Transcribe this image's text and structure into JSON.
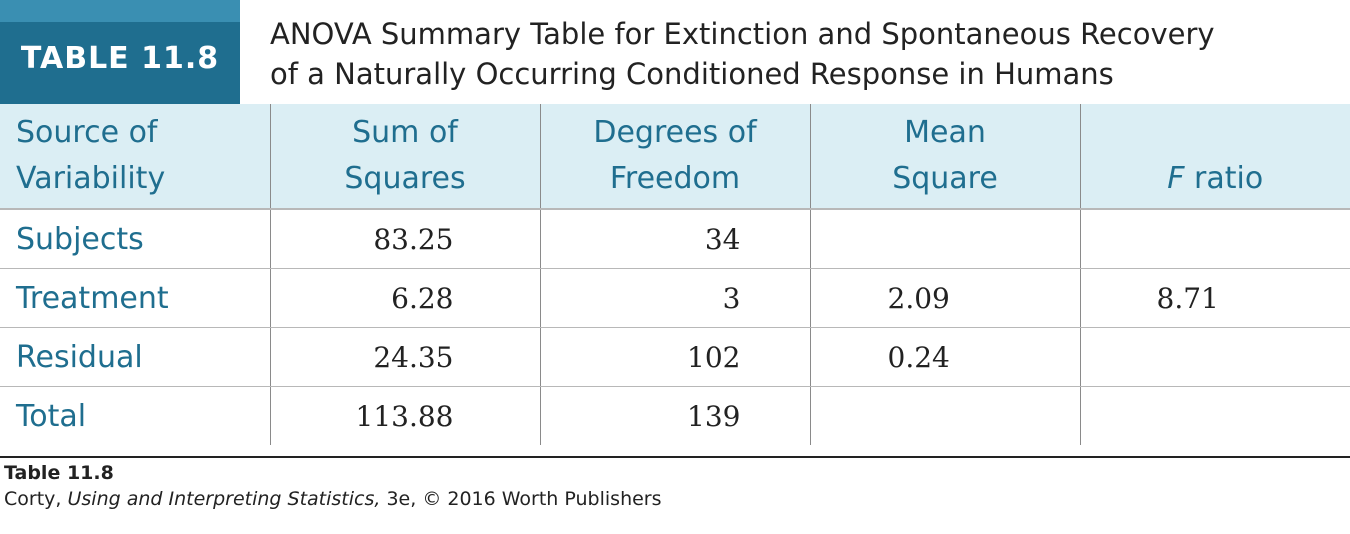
{
  "badge": "TABLE 11.8",
  "caption": {
    "line1": "ANOVA Summary Table for Extinction and Spontaneous Recovery",
    "line2": "of a Naturally Occurring Conditioned Response in Humans"
  },
  "headers": {
    "source": {
      "line1": "Source of",
      "line2": "Variability"
    },
    "ss": {
      "line1": "Sum of",
      "line2": "Squares"
    },
    "df": {
      "line1": "Degrees of",
      "line2": "Freedom"
    },
    "ms": {
      "line1": "Mean",
      "line2": "Square"
    },
    "f": {
      "italic": "F",
      "rest": " ratio"
    }
  },
  "rows": [
    {
      "source": "Subjects",
      "ss": "83.25",
      "df": "34",
      "ms": "",
      "f": ""
    },
    {
      "source": "Treatment",
      "ss": "6.28",
      "df": "3",
      "ms": "2.09",
      "f": "8.71"
    },
    {
      "source": "Residual",
      "ss": "24.35",
      "df": "102",
      "ms": "0.24",
      "f": ""
    },
    {
      "source": "Total",
      "ss": "113.88",
      "df": "139",
      "ms": "",
      "f": ""
    }
  ],
  "footer": {
    "id": "Table 11.8",
    "credit_pre": "Corty, ",
    "credit_title": "Using and Interpreting Statistics,",
    "credit_post": " 3e, © 2016 Worth Publishers"
  },
  "colors": {
    "accent": "#1f6e8f",
    "header_bg": "#dbeef4",
    "badge_strip": "#3a8fb2"
  }
}
